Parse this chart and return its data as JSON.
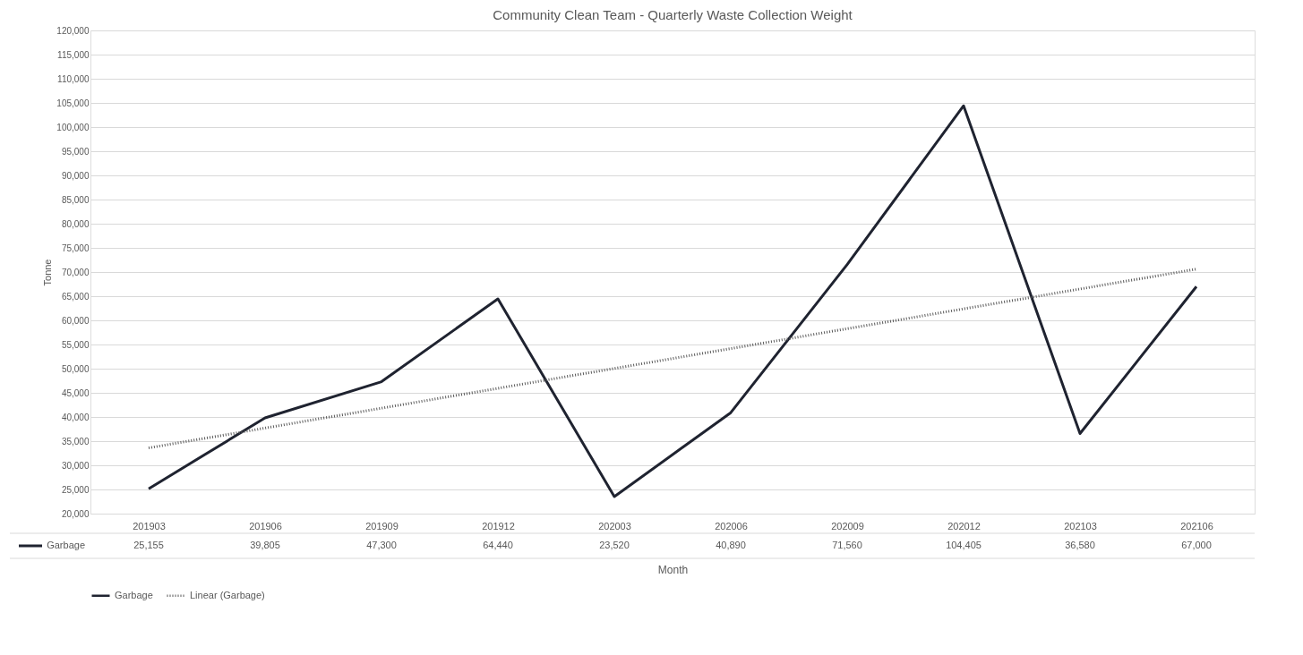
{
  "chart_data": {
    "type": "line",
    "title": "Community Clean Team - Quarterly Waste Collection Weight",
    "xlabel": "Month",
    "ylabel": "Tonne",
    "categories": [
      "201903",
      "201906",
      "201909",
      "201912",
      "202003",
      "202006",
      "202009",
      "202012",
      "202103",
      "202106"
    ],
    "series": [
      {
        "name": "Garbage",
        "color": "#1f2330",
        "line_style": "solid",
        "values": [
          25155,
          39805,
          47300,
          64440,
          23520,
          40890,
          71560,
          104405,
          36580,
          67000
        ],
        "value_labels": [
          "25,155",
          "39,805",
          "47,300",
          "64,440",
          "23,520",
          "40,890",
          "71,560",
          "104,405",
          "36,580",
          "67,000"
        ]
      },
      {
        "name": "Linear (Garbage)",
        "type": "line",
        "color": "#595959",
        "line_style": "dotted",
        "x": [
          "201903",
          "202106"
        ],
        "values": [
          33600,
          70600
        ]
      }
    ],
    "ylim": [
      20000,
      120000
    ],
    "yticks": [
      {
        "value": 20000,
        "label": "20,000"
      },
      {
        "value": 25000,
        "label": "25,000"
      },
      {
        "value": 30000,
        "label": "30,000"
      },
      {
        "value": 35000,
        "label": "35,000"
      },
      {
        "value": 40000,
        "label": "40,000"
      },
      {
        "value": 45000,
        "label": "45,000"
      },
      {
        "value": 50000,
        "label": "50,000"
      },
      {
        "value": 55000,
        "label": "55,000"
      },
      {
        "value": 60000,
        "label": "60,000"
      },
      {
        "value": 65000,
        "label": "65,000"
      },
      {
        "value": 70000,
        "label": "70,000"
      },
      {
        "value": 75000,
        "label": "75,000"
      },
      {
        "value": 80000,
        "label": "80,000"
      },
      {
        "value": 85000,
        "label": "85,000"
      },
      {
        "value": 90000,
        "label": "90,000"
      },
      {
        "value": 95000,
        "label": "95,000"
      },
      {
        "value": 100000,
        "label": "100,000"
      },
      {
        "value": 105000,
        "label": "105,000"
      },
      {
        "value": 110000,
        "label": "110,000"
      },
      {
        "value": 115000,
        "label": "115,000"
      },
      {
        "value": 120000,
        "label": "120,000"
      }
    ],
    "grid": "y",
    "legend": "bottom"
  }
}
